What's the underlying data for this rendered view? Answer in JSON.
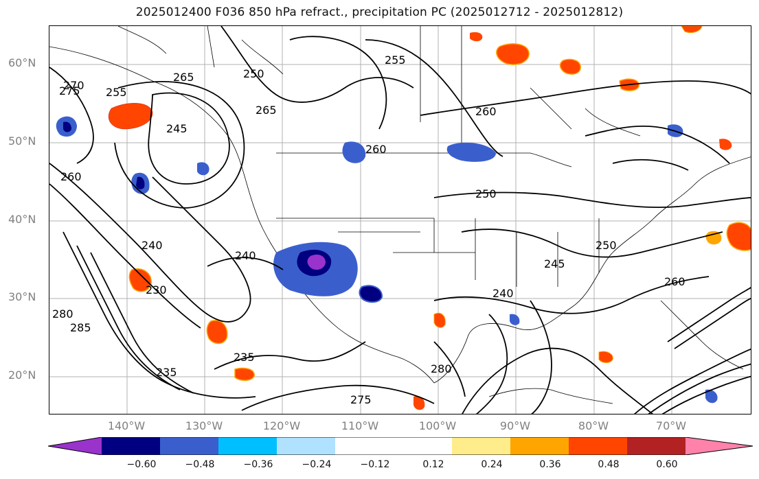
{
  "title": "2025012400 F036 850 hPa refract., precipitation PC (2025012712 - 2025012812)",
  "lat_labels": [
    "60°N",
    "50°N",
    "40°N",
    "30°N",
    "20°N"
  ],
  "lon_labels": [
    "140°W",
    "130°W",
    "120°W",
    "110°W",
    "100°W",
    "90°W",
    "80°W",
    "70°W"
  ],
  "colorbar": {
    "ticks": [
      "−0.60",
      "−0.48",
      "−0.36",
      "−0.24",
      "−0.12",
      "0.12",
      "0.24",
      "0.36",
      "0.48",
      "0.60"
    ],
    "colors": [
      "#9933cc",
      "#000080",
      "#3a5fcd",
      "#00bfff",
      "#b0e2ff",
      "#ffffff",
      "#ffec8b",
      "#ffa500",
      "#ff4500",
      "#b22222",
      "#ff82ab"
    ]
  },
  "contour_labels": [
    "255",
    "265",
    "270",
    "275",
    "245",
    "250",
    "260",
    "240",
    "235",
    "230",
    "280",
    "285",
    "260",
    "265",
    "240",
    "245",
    "250",
    "260",
    "275",
    "280",
    "235",
    "240",
    "250",
    "255",
    "260"
  ]
}
